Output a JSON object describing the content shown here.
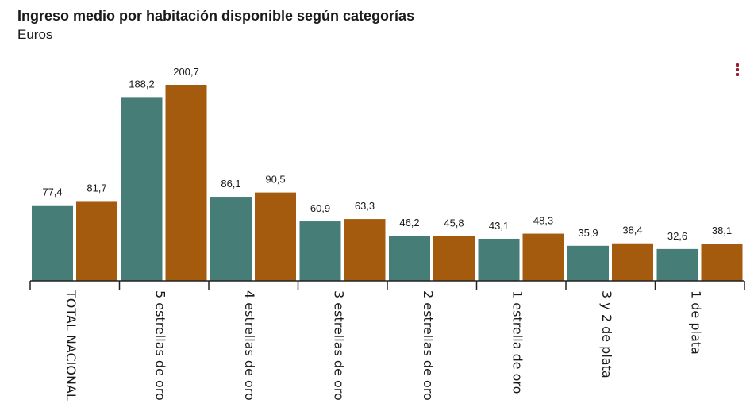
{
  "chart_data": {
    "type": "bar",
    "title": "Ingreso medio por habitación disponible según categorías",
    "subtitle": "Euros",
    "categories": [
      "TOTAL NACIONAL",
      "5 estrellas de oro",
      "4 estrellas de oro",
      "3 estrellas de oro",
      "2 estrellas de oro",
      "1 estrella de oro",
      "3 y 2 de plata",
      "1 de plata"
    ],
    "series": [
      {
        "values": [
          77.4,
          188.2,
          86.1,
          60.9,
          46.2,
          43.1,
          35.9,
          32.6
        ],
        "labels": [
          "77,4",
          "188,2",
          "86,1",
          "60,9",
          "46,2",
          "43,1",
          "35,9",
          "32,6"
        ]
      },
      {
        "values": [
          81.7,
          200.7,
          90.5,
          63.3,
          45.8,
          48.3,
          38.4,
          38.1
        ],
        "labels": [
          "81,7",
          "200,7",
          "90,5",
          "63,3",
          "45,8",
          "48,3",
          "38,4",
          "38,1"
        ]
      }
    ],
    "colors": [
      "#467d77",
      "#a55b0e"
    ],
    "ylim": [
      0,
      200.7
    ],
    "grid": false,
    "legend": "none"
  },
  "menu": {
    "icon": "kebab-menu-icon"
  }
}
